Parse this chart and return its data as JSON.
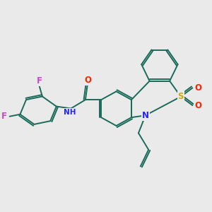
{
  "bg_color": "#eaeaea",
  "bond_color": "#1a6b5a",
  "atom_colors": {
    "F": "#cc44cc",
    "O": "#ff2200",
    "N": "#2222ff",
    "S": "#ccaa00",
    "H": "#2222ff"
  },
  "line_width": 1.4,
  "dbo": 0.08
}
